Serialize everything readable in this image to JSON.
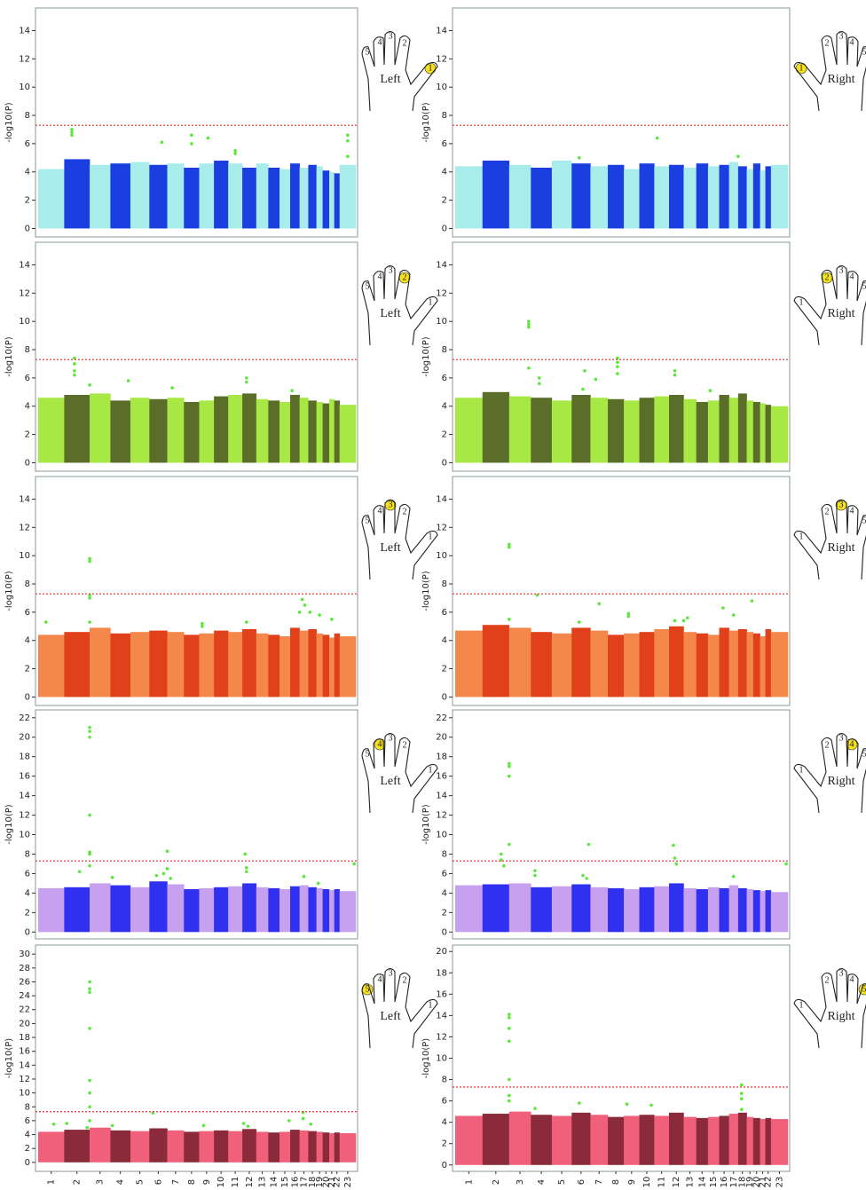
{
  "chart_data": [
    {
      "type": "manhattan",
      "ylabel": "-log10(P)",
      "ylim": [
        -0.6,
        15.6
      ],
      "yticks": [
        0,
        2,
        4,
        6,
        8,
        10,
        12,
        14
      ],
      "threshold": 7.3,
      "threshold_color": "#e03030",
      "colors": [
        "#a8ecec",
        "#1a3ee0"
      ],
      "values": [
        4.2,
        4.9,
        4.5,
        4.6,
        4.7,
        4.5,
        4.6,
        4.3,
        4.6,
        4.8,
        4.6,
        4.3,
        4.6,
        4.3,
        4.2,
        4.6,
        4.3,
        4.5,
        4.4,
        4.1,
        4.0,
        3.9,
        4.5
      ],
      "hits": {
        "color": "#5ae83a",
        "x": [
          2.3,
          2.3,
          2.3,
          6.7,
          8.5,
          8.5,
          9.6,
          11.5,
          11.5,
          23.5,
          23.5,
          23.5
        ],
        "values": [
          7.0,
          6.8,
          6.6,
          6.1,
          6.6,
          6.0,
          6.4,
          5.5,
          5.3,
          6.6,
          6.2,
          5.1
        ]
      },
      "hand": "Left",
      "fingers": [
        1,
        2,
        3,
        4,
        5
      ],
      "highlight": 1
    },
    {
      "type": "manhattan",
      "ylabel": "-log10(P)",
      "ylim": [
        -0.6,
        15.6
      ],
      "yticks": [
        0,
        2,
        4,
        6,
        8,
        10,
        12,
        14
      ],
      "threshold": 7.3,
      "threshold_color": "#e03030",
      "colors": [
        "#a8ecec",
        "#1a3ee0"
      ],
      "values": [
        4.4,
        4.8,
        4.5,
        4.3,
        4.8,
        4.6,
        4.4,
        4.5,
        4.2,
        4.6,
        4.4,
        4.5,
        4.3,
        4.6,
        4.4,
        4.5,
        4.7,
        4.4,
        4.2,
        4.6,
        4.1,
        4.4,
        4.5
      ],
      "hits": {
        "color": "#5ae83a",
        "x": [
          6.4,
          11.2,
          18.0
        ],
        "values": [
          5.0,
          6.4,
          5.1
        ]
      },
      "hand": "Right",
      "fingers": [
        1,
        2,
        3,
        4,
        5
      ],
      "highlight": 1
    },
    {
      "type": "manhattan",
      "ylabel": "-log10(P)",
      "ylim": [
        -0.6,
        15.6
      ],
      "yticks": [
        0,
        2,
        4,
        6,
        8,
        10,
        12,
        14
      ],
      "threshold": 7.3,
      "threshold_color": "#e03030",
      "colors": [
        "#a8e844",
        "#5a6e2a"
      ],
      "values": [
        4.6,
        4.8,
        4.9,
        4.4,
        4.6,
        4.5,
        4.6,
        4.3,
        4.4,
        4.7,
        4.8,
        4.9,
        4.5,
        4.4,
        4.3,
        4.8,
        4.6,
        4.4,
        4.3,
        4.2,
        4.5,
        4.4,
        4.1
      ],
      "hits": {
        "color": "#5ae83a",
        "x": [
          2.4,
          2.4,
          2.4,
          2.4,
          3.0,
          4.9,
          7.3,
          12.3,
          12.3,
          16.2
        ],
        "values": [
          7.4,
          7.0,
          6.5,
          6.2,
          5.5,
          5.8,
          5.3,
          6.0,
          5.7,
          5.1
        ]
      },
      "hand": "Left",
      "fingers": [
        1,
        2,
        3,
        4,
        5
      ],
      "highlight": 2
    },
    {
      "type": "manhattan",
      "ylabel": "-log10(P)",
      "ylim": [
        -0.6,
        15.6
      ],
      "yticks": [
        0,
        2,
        4,
        6,
        8,
        10,
        12,
        14
      ],
      "threshold": 7.3,
      "threshold_color": "#e03030",
      "colors": [
        "#a8e844",
        "#5a6e2a"
      ],
      "values": [
        4.6,
        5.0,
        4.7,
        4.6,
        4.4,
        4.8,
        4.6,
        4.5,
        4.4,
        4.6,
        4.7,
        4.8,
        4.5,
        4.3,
        4.4,
        4.8,
        4.6,
        4.9,
        4.4,
        4.3,
        4.2,
        4.1,
        4.0
      ],
      "hits": {
        "color": "#5ae83a",
        "x": [
          3.9,
          3.9,
          3.9,
          3.9,
          4.4,
          4.4,
          6.7,
          6.6,
          7.3,
          8.6,
          8.6,
          8.6,
          8.6,
          12.4,
          12.4,
          15.2
        ],
        "values": [
          10.0,
          9.8,
          9.6,
          6.7,
          6.0,
          5.6,
          6.5,
          5.2,
          5.9,
          7.4,
          7.1,
          6.8,
          6.3,
          6.5,
          6.2,
          5.1
        ]
      },
      "hand": "Right",
      "fingers": [
        1,
        2,
        3,
        4,
        5
      ],
      "highlight": 2
    },
    {
      "type": "manhattan",
      "ylabel": "-log10(P)",
      "ylim": [
        -0.6,
        15.6
      ],
      "yticks": [
        0,
        2,
        4,
        6,
        8,
        10,
        12,
        14
      ],
      "threshold": 7.3,
      "threshold_color": "#e03030",
      "colors": [
        "#f4884a",
        "#e0401a"
      ],
      "values": [
        4.4,
        4.6,
        4.9,
        4.5,
        4.6,
        4.7,
        4.6,
        4.4,
        4.5,
        4.7,
        4.6,
        4.8,
        4.5,
        4.4,
        4.3,
        4.9,
        4.7,
        4.8,
        4.5,
        4.4,
        4.2,
        4.5,
        4.3
      ],
      "hits": {
        "color": "#5ae83a",
        "x": [
          1.3,
          3.0,
          3.0,
          3.0,
          3.0,
          3.0,
          9.2,
          9.2,
          12.3,
          17.3,
          17.0,
          17.6,
          18.2,
          19.5,
          21.5
        ],
        "values": [
          5.3,
          9.8,
          9.6,
          7.2,
          7.0,
          5.3,
          5.2,
          5.0,
          5.3,
          6.9,
          6.0,
          6.5,
          6.0,
          5.8,
          5.5
        ]
      },
      "hand": "Left",
      "fingers": [
        1,
        2,
        3,
        4,
        5
      ],
      "highlight": 3
    },
    {
      "type": "manhattan",
      "ylabel": "-log10(P)",
      "ylim": [
        -0.6,
        15.6
      ],
      "yticks": [
        0,
        2,
        4,
        6,
        8,
        10,
        12,
        14
      ],
      "threshold": 7.3,
      "threshold_color": "#e03030",
      "colors": [
        "#f4884a",
        "#e0401a"
      ],
      "values": [
        4.7,
        5.1,
        4.9,
        4.6,
        4.5,
        4.9,
        4.7,
        4.4,
        4.5,
        4.6,
        4.8,
        5.0,
        4.6,
        4.5,
        4.4,
        4.9,
        4.7,
        4.8,
        4.6,
        4.5,
        4.3,
        4.8,
        4.6
      ],
      "hits": {
        "color": "#5ae83a",
        "x": [
          3.0,
          3.0,
          3.0,
          4.3,
          6.4,
          7.5,
          9.3,
          9.3,
          12.4,
          13.0,
          13.3,
          16.4,
          17.5,
          19.8
        ],
        "values": [
          10.8,
          10.6,
          5.5,
          7.2,
          5.3,
          6.6,
          5.9,
          5.7,
          5.4,
          5.4,
          5.6,
          6.3,
          5.8,
          6.8
        ]
      },
      "hand": "Right",
      "fingers": [
        1,
        2,
        3,
        4,
        5
      ],
      "highlight": 3
    },
    {
      "type": "manhattan",
      "ylabel": "-log10(P)",
      "ylim": [
        -0.7,
        22.8
      ],
      "yticks": [
        0,
        2,
        4,
        6,
        8,
        10,
        12,
        14,
        16,
        18,
        20,
        22
      ],
      "threshold": 7.3,
      "threshold_color": "#e03030",
      "colors": [
        "#c8a0f0",
        "#3030f0"
      ],
      "values": [
        4.5,
        4.6,
        5.0,
        4.8,
        4.6,
        5.2,
        4.9,
        4.4,
        4.5,
        4.6,
        4.7,
        5.0,
        4.6,
        4.5,
        4.4,
        4.7,
        4.8,
        4.6,
        4.5,
        4.4,
        4.3,
        4.4,
        4.2
      ],
      "hits": {
        "color": "#5ae83a",
        "x": [
          3.0,
          3.0,
          3.0,
          3.0,
          3.0,
          3.0,
          3.0,
          2.6,
          4.1,
          6.4,
          6.8,
          7.0,
          7.0,
          7.2,
          12.2,
          12.3,
          12.3,
          17.5,
          19.3,
          23.9
        ],
        "values": [
          21.0,
          20.6,
          20.0,
          12.0,
          8.2,
          8.0,
          6.8,
          6.2,
          5.6,
          5.8,
          6.0,
          8.3,
          6.5,
          5.5,
          8.0,
          6.6,
          6.2,
          5.7,
          5.0,
          7.0
        ]
      },
      "hand": "Left",
      "fingers": [
        1,
        2,
        3,
        4,
        5
      ],
      "highlight": 4
    },
    {
      "type": "manhattan",
      "ylabel": "-log10(P)",
      "ylim": [
        -0.7,
        22.8
      ],
      "yticks": [
        0,
        2,
        4,
        6,
        8,
        10,
        12,
        14,
        16,
        18,
        20,
        22
      ],
      "threshold": 7.3,
      "threshold_color": "#e03030",
      "colors": [
        "#c8a0f0",
        "#3030f0"
      ],
      "values": [
        4.8,
        4.9,
        5.0,
        4.6,
        4.7,
        4.9,
        4.6,
        4.5,
        4.4,
        4.6,
        4.7,
        5.0,
        4.5,
        4.4,
        4.6,
        4.5,
        4.8,
        4.5,
        4.4,
        4.3,
        4.2,
        4.3,
        4.1
      ],
      "hits": {
        "color": "#5ae83a",
        "x": [
          2.7,
          2.7,
          2.8,
          3.0,
          3.0,
          3.0,
          3.0,
          4.2,
          4.2,
          6.9,
          6.6,
          6.8,
          12.3,
          12.4,
          12.5,
          17.5,
          23.9
        ],
        "values": [
          8.0,
          7.4,
          6.8,
          17.3,
          17.0,
          16.0,
          9.0,
          6.3,
          5.8,
          9.0,
          5.8,
          5.5,
          8.9,
          7.6,
          7.0,
          5.7,
          7.0
        ]
      },
      "hand": "Right",
      "fingers": [
        1,
        2,
        3,
        4,
        5
      ],
      "highlight": 4
    },
    {
      "type": "manhattan",
      "ylabel": "-log10(P)",
      "ylim": [
        -1.3,
        31.3
      ],
      "yticks": [
        0,
        2,
        4,
        6,
        8,
        10,
        12,
        14,
        16,
        18,
        20,
        22,
        24,
        26,
        28,
        30
      ],
      "threshold": 7.3,
      "threshold_color": "#e03030",
      "colors": [
        "#f0607a",
        "#8a2a3a"
      ],
      "values": [
        4.4,
        4.7,
        5.0,
        4.6,
        4.5,
        4.9,
        4.6,
        4.4,
        4.5,
        4.6,
        4.5,
        4.8,
        4.4,
        4.3,
        4.4,
        4.7,
        4.6,
        4.5,
        4.4,
        4.3,
        4.2,
        4.3,
        4.2
      ],
      "hits": {
        "color": "#5ae83a",
        "x": [
          1.6,
          2.1,
          3.0,
          3.0,
          3.0,
          3.0,
          3.0,
          3.0,
          3.0,
          3.0,
          2.9,
          4.1,
          6.2,
          9.3,
          12.1,
          12.4,
          15.9,
          17.4,
          17.4,
          18.3
        ],
        "values": [
          5.5,
          5.6,
          26.0,
          25.0,
          24.5,
          19.3,
          11.8,
          10.0,
          8.0,
          6.0,
          5.0,
          5.3,
          7.1,
          5.3,
          5.6,
          5.2,
          6.0,
          7.2,
          6.3,
          5.5
        ]
      },
      "hand": "Left",
      "fingers": [
        1,
        2,
        3,
        4,
        5
      ],
      "highlight": 5,
      "categories": [
        "1",
        "2",
        "3",
        "4",
        "5",
        "6",
        "7",
        "8",
        "9",
        "10",
        "11",
        "12",
        "13",
        "14",
        "15",
        "16",
        "17",
        "18",
        "19",
        "20",
        "21",
        "22",
        "23"
      ]
    },
    {
      "type": "manhattan",
      "ylabel": "-log10(P)",
      "ylim": [
        -0.6,
        20.6
      ],
      "yticks": [
        0,
        2,
        4,
        6,
        8,
        10,
        12,
        14,
        16,
        18,
        20
      ],
      "threshold": 7.3,
      "threshold_color": "#e03030",
      "colors": [
        "#f0607a",
        "#8a2a3a"
      ],
      "values": [
        4.6,
        4.8,
        5.0,
        4.7,
        4.6,
        4.9,
        4.7,
        4.5,
        4.6,
        4.7,
        4.6,
        4.9,
        4.5,
        4.4,
        4.5,
        4.6,
        4.8,
        4.9,
        4.5,
        4.4,
        4.3,
        4.4,
        4.3
      ],
      "hits": {
        "color": "#5ae83a",
        "x": [
          3.0,
          3.0,
          3.0,
          3.0,
          3.0,
          3.0,
          3.0,
          4.2,
          6.4,
          9.2,
          10.8,
          18.4,
          18.4,
          18.4,
          18.4
        ],
        "values": [
          14.1,
          13.8,
          12.8,
          11.6,
          8.0,
          6.5,
          6.0,
          5.3,
          5.8,
          5.7,
          5.6,
          7.5,
          6.7,
          6.2,
          5.2
        ]
      },
      "hand": "Right",
      "fingers": [
        1,
        2,
        3,
        4,
        5
      ],
      "highlight": 5,
      "categories": [
        "1",
        "2",
        "3",
        "4",
        "5",
        "6",
        "7",
        "8",
        "9",
        "10",
        "11",
        "12",
        "13",
        "14",
        "15",
        "16",
        "17",
        "18",
        "19",
        "20",
        "21",
        "22",
        "23"
      ]
    }
  ]
}
